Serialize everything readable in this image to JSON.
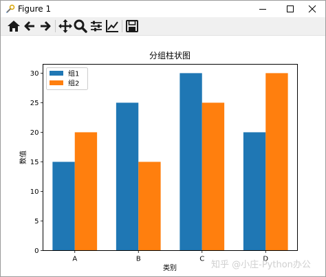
{
  "window": {
    "title": "Figure 1"
  },
  "toolbar": {
    "buttons": [
      {
        "name": "home-icon"
      },
      {
        "name": "back-icon"
      },
      {
        "name": "forward-icon"
      },
      {
        "name": "pan-icon"
      },
      {
        "name": "zoom-icon"
      },
      {
        "name": "configure-subplots-icon"
      },
      {
        "name": "edit-axis-icon"
      },
      {
        "name": "save-icon"
      }
    ]
  },
  "watermark": "知乎 @小庄-Python办公",
  "chart_data": {
    "type": "bar",
    "title": "分组柱状图",
    "xlabel": "类别",
    "ylabel": "数值",
    "categories": [
      "A",
      "B",
      "C",
      "D"
    ],
    "series": [
      {
        "name": "组1",
        "values": [
          15,
          25,
          30,
          20
        ],
        "color": "#1f77b4"
      },
      {
        "name": "组2",
        "values": [
          20,
          15,
          25,
          30
        ],
        "color": "#ff7f0e"
      }
    ],
    "ylim": [
      0,
      31.5
    ],
    "yticks": [
      0,
      5,
      10,
      15,
      20,
      25,
      30
    ],
    "legend": "top-left",
    "grid": false
  }
}
